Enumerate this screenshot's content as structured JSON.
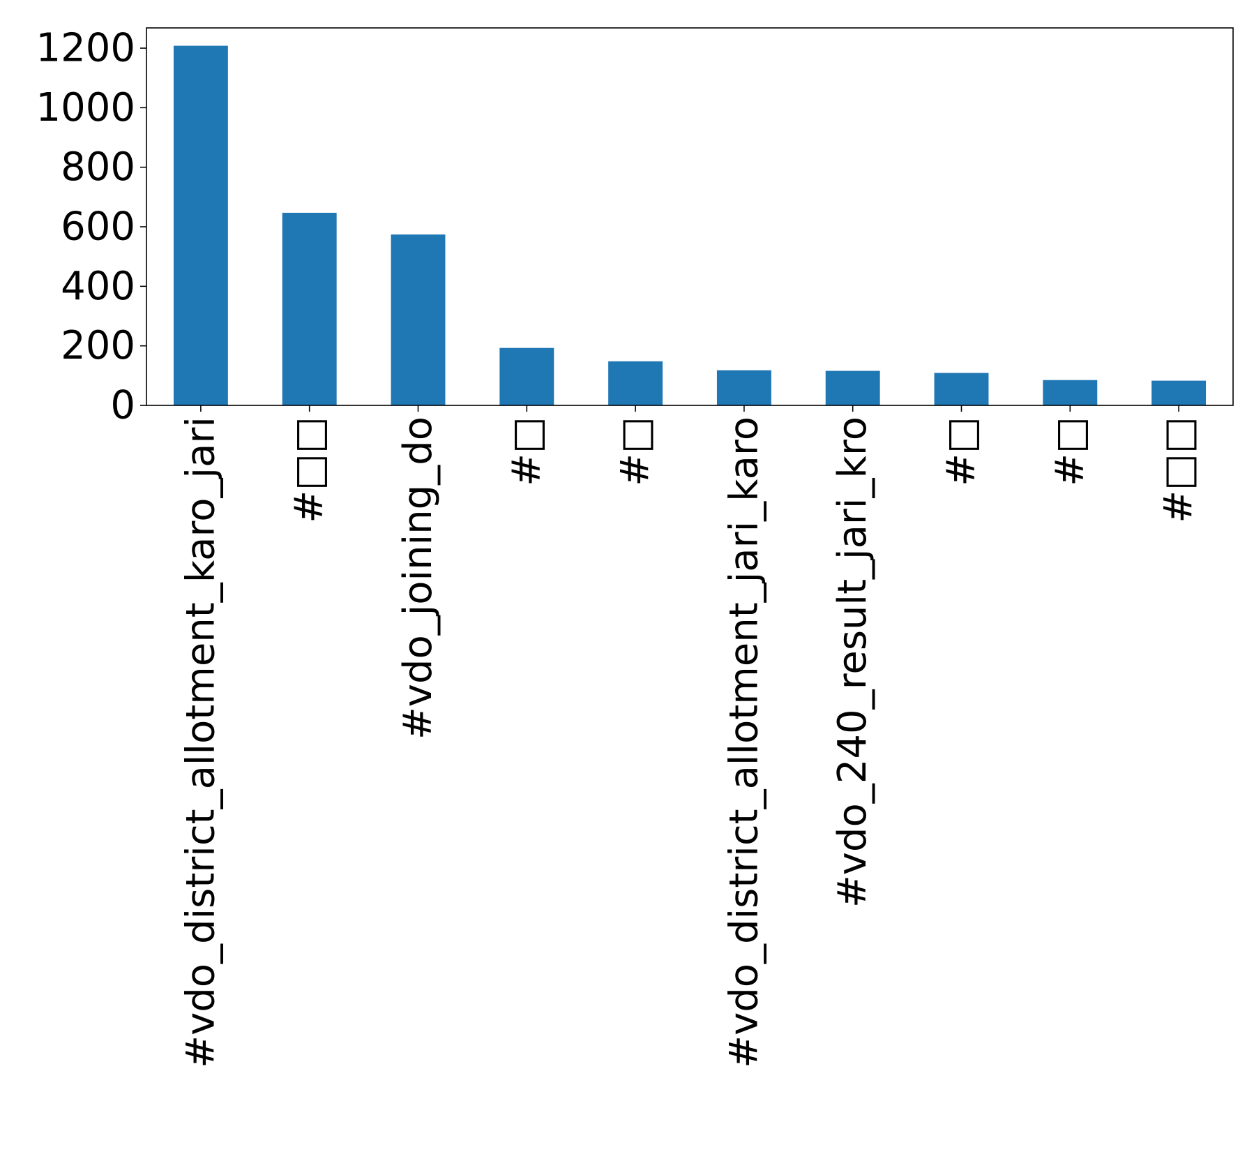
{
  "chart_data": {
    "type": "bar",
    "title": "",
    "xlabel": "",
    "ylabel": "",
    "categories": [
      "#vdo_district_allotment_karo_jari",
      "#□□",
      "#vdo_joining_do",
      "#□",
      "#□",
      "#vdo_district_allotment_jari_karo",
      "#vdo_240_result_jari_kro",
      "#□",
      "#□",
      "#□□"
    ],
    "values": [
      1208,
      647,
      574,
      193,
      148,
      118,
      116,
      109,
      85,
      83
    ],
    "ylim": [
      0,
      1268
    ],
    "yticks": [
      0,
      200,
      400,
      600,
      800,
      1000,
      1200
    ],
    "ytick_labels": [
      "0",
      "200",
      "400",
      "600",
      "800",
      "1000",
      "1200"
    ],
    "grid": false,
    "legend": "none",
    "colors": {
      "bar": "#1f77b4",
      "axes": "#000000",
      "text": "#000000"
    }
  }
}
